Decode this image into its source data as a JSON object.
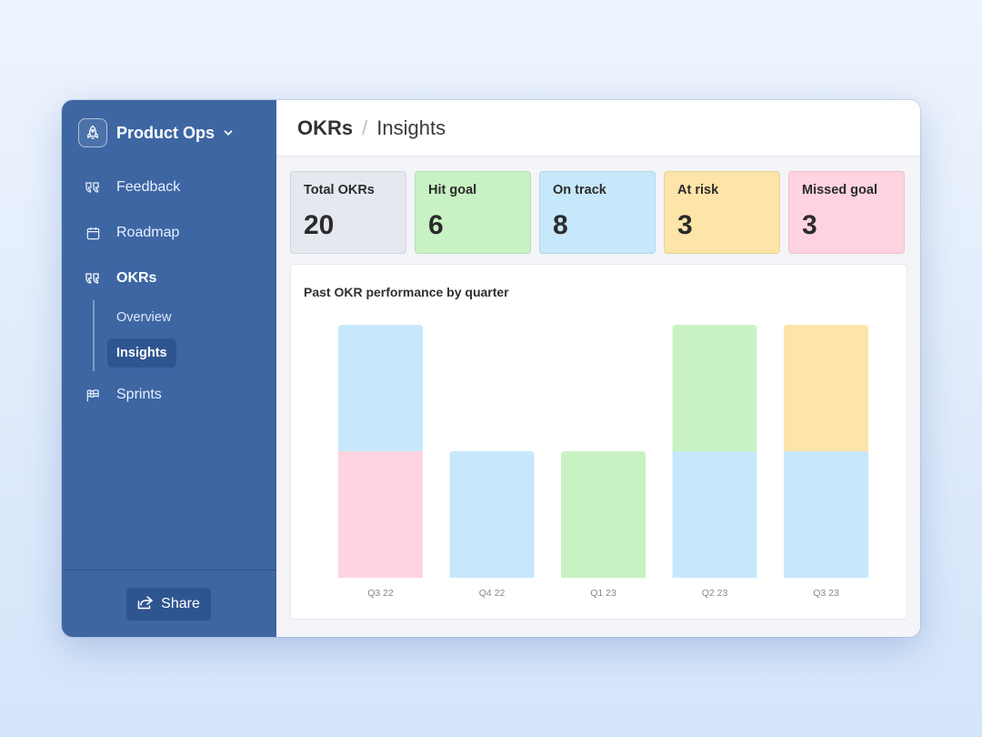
{
  "workspace": {
    "name": "Product Ops",
    "logo_icon": "rocket-icon"
  },
  "sidebar": {
    "items": [
      {
        "label": "Feedback",
        "icon": "quote-icon"
      },
      {
        "label": "Roadmap",
        "icon": "calendar-icon"
      },
      {
        "label": "OKRs",
        "icon": "quote-icon",
        "active": true
      },
      {
        "label": "Sprints",
        "icon": "flag-icon"
      }
    ],
    "okr_subitems": [
      {
        "label": "Overview"
      },
      {
        "label": "Insights",
        "active": true
      }
    ],
    "share_label": "Share"
  },
  "breadcrumb": {
    "root": "OKRs",
    "separator": "/",
    "current": "Insights"
  },
  "stats": [
    {
      "label": "Total OKRs",
      "value": "20",
      "color": "#e5e8ef"
    },
    {
      "label": "Hit goal",
      "value": "6",
      "color": "#c9f2c4"
    },
    {
      "label": "On track",
      "value": "8",
      "color": "#c7e8fb"
    },
    {
      "label": "At risk",
      "value": "3",
      "color": "#fde4a8"
    },
    {
      "label": "Missed goal",
      "value": "3",
      "color": "#ffd3e0"
    }
  ],
  "chart_data": {
    "type": "bar",
    "stacked": true,
    "title": "Past OKR performance by quarter",
    "categories": [
      "Q3 22",
      "Q4 22",
      "Q1 23",
      "Q2 23",
      "Q3 23"
    ],
    "series": [
      {
        "name": "Missed goal",
        "color": "#ffd3e0",
        "values": [
          1,
          0,
          0,
          0,
          0
        ]
      },
      {
        "name": "On track",
        "color": "#c7e8fb",
        "values": [
          1,
          1,
          0,
          1,
          1
        ]
      },
      {
        "name": "Hit goal",
        "color": "#c9f2c4",
        "values": [
          0,
          0,
          1,
          1,
          0
        ]
      },
      {
        "name": "At risk",
        "color": "#fde4a8",
        "values": [
          0,
          0,
          0,
          0,
          1
        ]
      }
    ],
    "ylim": [
      0,
      2
    ],
    "grid": false,
    "legend": "none"
  }
}
